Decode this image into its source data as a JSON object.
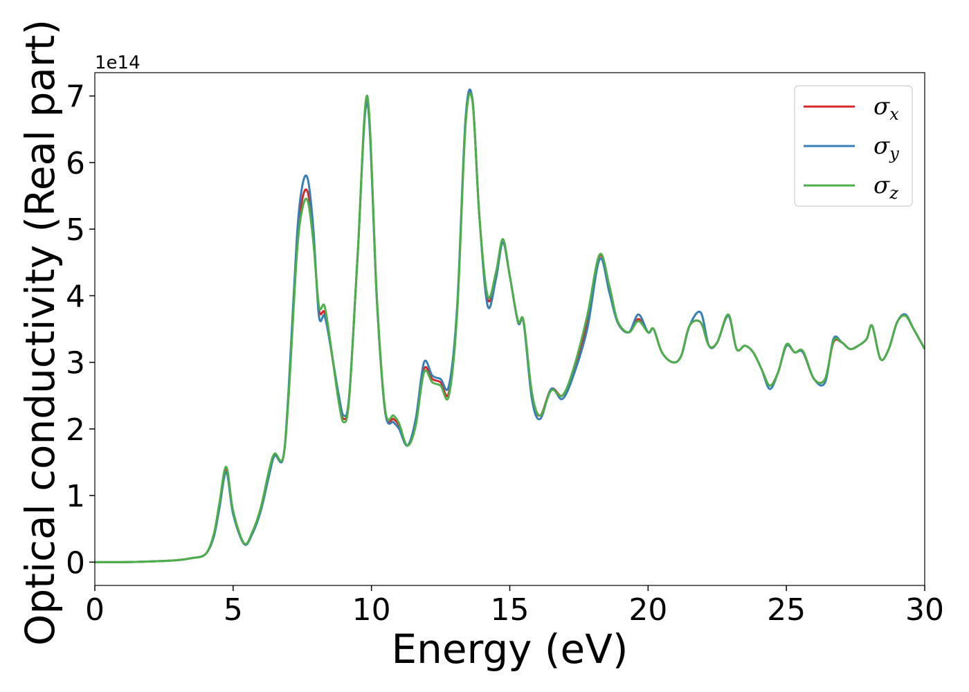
{
  "chart_data": {
    "type": "line",
    "xlabel": "Energy (eV)",
    "ylabel": "Optical conductivity (Real part)",
    "y_offset_text": "1e14",
    "xlim": [
      0,
      30
    ],
    "ylim": [
      -0.35,
      7.35
    ],
    "x_ticks": [
      0,
      5,
      10,
      15,
      20,
      25,
      30
    ],
    "y_ticks": [
      0,
      1,
      2,
      3,
      4,
      5,
      6,
      7
    ],
    "grid": false,
    "legend_position": "top-right",
    "series": [
      {
        "name": "σx",
        "symbol": "σ",
        "subscript": "x",
        "color": "#d62728",
        "x": [
          0,
          1,
          2,
          3,
          3.5,
          4,
          4.3,
          4.5,
          4.75,
          5.0,
          5.4,
          5.7,
          6.0,
          6.3,
          6.5,
          6.8,
          7.0,
          7.3,
          7.5,
          7.7,
          7.9,
          8.1,
          8.3,
          8.5,
          8.8,
          9.0,
          9.2,
          9.5,
          9.85,
          10.2,
          10.5,
          10.8,
          11.0,
          11.3,
          11.6,
          11.9,
          12.2,
          12.5,
          12.8,
          13.1,
          13.4,
          13.65,
          13.9,
          14.2,
          14.5,
          14.75,
          15.0,
          15.3,
          15.5,
          15.8,
          16.1,
          16.5,
          16.9,
          17.3,
          17.8,
          18.25,
          18.6,
          18.9,
          19.3,
          19.65,
          20.0,
          20.2,
          20.5,
          20.9,
          21.2,
          21.5,
          21.9,
          22.2,
          22.5,
          22.9,
          23.2,
          23.5,
          23.8,
          24.1,
          24.4,
          24.7,
          25.0,
          25.3,
          25.6,
          26.0,
          26.4,
          26.7,
          27.0,
          27.3,
          27.6,
          27.9,
          28.1,
          28.4,
          28.7,
          29.0,
          29.3,
          29.6,
          30.0
        ],
        "y": [
          0,
          0,
          0.01,
          0.03,
          0.06,
          0.12,
          0.4,
          0.85,
          1.4,
          0.75,
          0.28,
          0.45,
          0.8,
          1.35,
          1.62,
          1.55,
          2.5,
          4.7,
          5.45,
          5.55,
          4.9,
          3.8,
          3.75,
          3.3,
          2.5,
          2.15,
          2.5,
          4.6,
          6.95,
          3.9,
          2.25,
          2.15,
          2.05,
          1.75,
          2.1,
          2.9,
          2.75,
          2.7,
          2.55,
          3.8,
          6.6,
          6.95,
          5.2,
          3.95,
          4.3,
          4.8,
          4.3,
          3.6,
          3.6,
          2.5,
          2.2,
          2.6,
          2.5,
          2.85,
          3.6,
          4.6,
          4.1,
          3.6,
          3.45,
          3.65,
          3.45,
          3.5,
          3.15,
          3.0,
          3.1,
          3.55,
          3.6,
          3.25,
          3.3,
          3.7,
          3.2,
          3.25,
          3.15,
          2.9,
          2.65,
          2.85,
          3.25,
          3.15,
          3.15,
          2.75,
          2.75,
          3.3,
          3.3,
          3.2,
          3.25,
          3.35,
          3.55,
          3.05,
          3.2,
          3.6,
          3.7,
          3.5,
          3.2
        ]
      },
      {
        "name": "σy",
        "symbol": "σ",
        "subscript": "y",
        "color": "#377eb8",
        "x": [
          0,
          1,
          2,
          3,
          3.5,
          4,
          4.3,
          4.5,
          4.75,
          5.0,
          5.4,
          5.7,
          6.0,
          6.3,
          6.5,
          6.8,
          7.0,
          7.3,
          7.5,
          7.7,
          7.9,
          8.1,
          8.3,
          8.5,
          8.8,
          9.0,
          9.2,
          9.5,
          9.85,
          10.2,
          10.5,
          10.8,
          11.0,
          11.3,
          11.6,
          11.9,
          12.2,
          12.5,
          12.8,
          13.1,
          13.4,
          13.65,
          13.9,
          14.2,
          14.5,
          14.75,
          15.0,
          15.3,
          15.5,
          15.8,
          16.1,
          16.5,
          16.9,
          17.3,
          17.8,
          18.25,
          18.6,
          18.9,
          19.3,
          19.65,
          20.0,
          20.2,
          20.5,
          20.9,
          21.2,
          21.5,
          21.9,
          22.2,
          22.5,
          22.9,
          23.2,
          23.5,
          23.8,
          24.1,
          24.4,
          24.7,
          25.0,
          25.3,
          25.6,
          26.0,
          26.4,
          26.7,
          27.0,
          27.3,
          27.6,
          27.9,
          28.1,
          28.4,
          28.7,
          29.0,
          29.3,
          29.6,
          30.0
        ],
        "y": [
          0,
          0,
          0.01,
          0.03,
          0.06,
          0.12,
          0.38,
          0.8,
          1.35,
          0.72,
          0.27,
          0.43,
          0.77,
          1.3,
          1.6,
          1.55,
          2.55,
          4.85,
          5.65,
          5.75,
          5.0,
          3.7,
          3.7,
          3.3,
          2.55,
          2.2,
          2.52,
          4.6,
          6.9,
          3.9,
          2.25,
          2.1,
          2.0,
          1.75,
          2.15,
          3.0,
          2.8,
          2.75,
          2.65,
          3.85,
          6.65,
          6.95,
          5.2,
          3.85,
          4.25,
          4.8,
          4.3,
          3.6,
          3.6,
          2.45,
          2.15,
          2.6,
          2.45,
          2.8,
          3.5,
          4.55,
          4.05,
          3.6,
          3.45,
          3.72,
          3.45,
          3.5,
          3.15,
          3.0,
          3.1,
          3.55,
          3.75,
          3.25,
          3.3,
          3.7,
          3.2,
          3.25,
          3.15,
          2.9,
          2.6,
          2.85,
          3.25,
          3.15,
          3.15,
          2.75,
          2.7,
          3.35,
          3.3,
          3.2,
          3.25,
          3.35,
          3.55,
          3.05,
          3.2,
          3.6,
          3.72,
          3.5,
          3.2
        ]
      },
      {
        "name": "σz",
        "symbol": "σ",
        "subscript": "z",
        "color": "#4daf4a",
        "x": [
          0,
          1,
          2,
          3,
          3.5,
          4,
          4.3,
          4.5,
          4.75,
          5.0,
          5.4,
          5.7,
          6.0,
          6.3,
          6.5,
          6.8,
          7.0,
          7.3,
          7.5,
          7.7,
          7.9,
          8.1,
          8.3,
          8.5,
          8.8,
          9.0,
          9.2,
          9.5,
          9.85,
          10.2,
          10.5,
          10.8,
          11.0,
          11.3,
          11.6,
          11.9,
          12.2,
          12.5,
          12.8,
          13.1,
          13.4,
          13.65,
          13.9,
          14.2,
          14.5,
          14.75,
          15.0,
          15.3,
          15.5,
          15.8,
          16.1,
          16.5,
          16.9,
          17.3,
          17.8,
          18.25,
          18.6,
          18.9,
          19.3,
          19.65,
          20.0,
          20.2,
          20.5,
          20.9,
          21.2,
          21.5,
          21.9,
          22.2,
          22.5,
          22.9,
          23.2,
          23.5,
          23.8,
          24.1,
          24.4,
          24.7,
          25.0,
          25.3,
          25.6,
          26.0,
          26.4,
          26.7,
          27.0,
          27.3,
          27.6,
          27.9,
          28.1,
          28.4,
          28.7,
          29.0,
          29.3,
          29.6,
          30.0
        ],
        "y": [
          0,
          0,
          0.01,
          0.03,
          0.06,
          0.12,
          0.42,
          0.88,
          1.43,
          0.77,
          0.28,
          0.46,
          0.82,
          1.38,
          1.63,
          1.56,
          2.45,
          4.6,
          5.3,
          5.42,
          4.8,
          3.85,
          3.85,
          3.35,
          2.45,
          2.1,
          2.48,
          4.6,
          7.0,
          3.95,
          2.28,
          2.2,
          2.08,
          1.75,
          2.05,
          2.85,
          2.7,
          2.65,
          2.5,
          3.75,
          6.55,
          6.92,
          5.2,
          4.0,
          4.35,
          4.85,
          4.3,
          3.62,
          3.62,
          2.55,
          2.2,
          2.58,
          2.5,
          2.9,
          3.7,
          4.62,
          4.15,
          3.62,
          3.45,
          3.62,
          3.45,
          3.5,
          3.15,
          3.0,
          3.1,
          3.55,
          3.6,
          3.25,
          3.3,
          3.72,
          3.2,
          3.25,
          3.15,
          2.9,
          2.65,
          2.85,
          3.27,
          3.15,
          3.17,
          2.75,
          2.75,
          3.32,
          3.3,
          3.2,
          3.25,
          3.35,
          3.55,
          3.05,
          3.2,
          3.6,
          3.7,
          3.5,
          3.2
        ]
      }
    ]
  }
}
